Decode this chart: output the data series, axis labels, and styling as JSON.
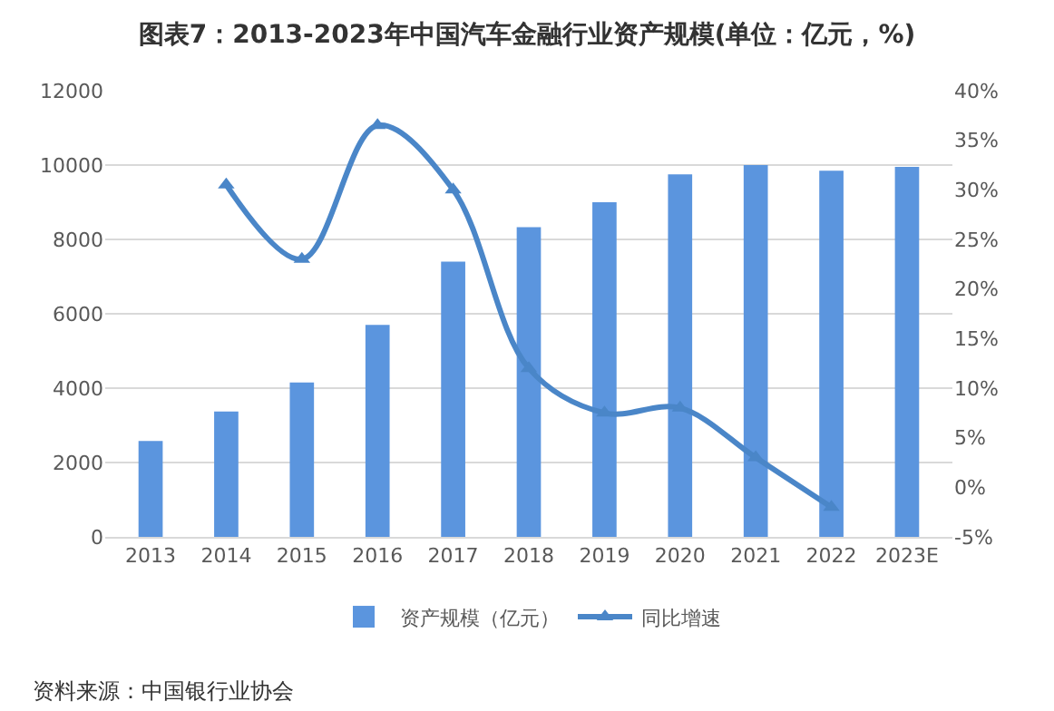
{
  "chart_data": {
    "type": "bar",
    "title": "图表7：2013-2023年中国汽车金融行业资产规模(单位：亿元，%)",
    "categories": [
      "2013",
      "2014",
      "2015",
      "2016",
      "2017",
      "2018",
      "2019",
      "2020",
      "2021",
      "2022",
      "2023E"
    ],
    "series": [
      {
        "name": "资产规模（亿元）",
        "color": "#5b95de",
        "values": [
          2580,
          3370,
          4150,
          5700,
          7400,
          8330,
          9000,
          9750,
          10000,
          9850,
          9950
        ]
      },
      {
        "name": "同比增速",
        "type": "line",
        "axis": "y2",
        "color": "#4a86c8",
        "marker": "triangle",
        "values": [
          null,
          30.5,
          23,
          36.5,
          30,
          12,
          7.5,
          8,
          3,
          -2,
          null
        ]
      }
    ],
    "ylim": [
      0,
      12000
    ],
    "yticks": [
      0,
      2000,
      4000,
      6000,
      8000,
      10000,
      12000
    ],
    "y2lim": [
      -5,
      40
    ],
    "y2ticks": [
      {
        "value": -5,
        "label": "-5%"
      },
      {
        "value": 0,
        "label": "0%"
      },
      {
        "value": 5,
        "label": "5%"
      },
      {
        "value": 10,
        "label": "10%"
      },
      {
        "value": 15,
        "label": "15%"
      },
      {
        "value": 20,
        "label": "20%"
      },
      {
        "value": 25,
        "label": "25%"
      },
      {
        "value": 30,
        "label": "30%"
      },
      {
        "value": 35,
        "label": "35%"
      },
      {
        "value": 40,
        "label": "40%"
      }
    ],
    "grid": "y",
    "legend": "bottom",
    "annotations": [
      "资料来源：中国银行业协会"
    ]
  }
}
